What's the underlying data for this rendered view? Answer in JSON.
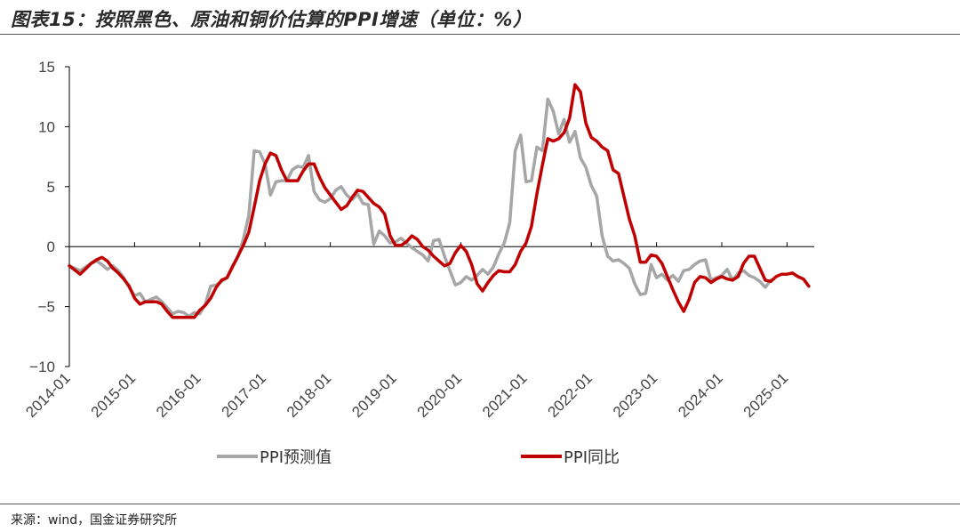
{
  "header": {
    "title": "图表15：按照黑色、原油和铜价估算的PPI增速（单位：%）"
  },
  "footer": {
    "source": "来源：wind，国金证券研究所"
  },
  "colors": {
    "forecast": "#A6A6A6",
    "actual": "#C00000",
    "axis": "#000000"
  },
  "chart_data": {
    "type": "line",
    "title": "",
    "xlabel": "",
    "ylabel": "",
    "ylim": [
      -10,
      15
    ],
    "yticks": [
      15,
      10,
      5,
      0,
      -5,
      -10
    ],
    "x_start": "2014-01",
    "x_end": "2025-06",
    "xticks": [
      "2014-01",
      "2015-01",
      "2016-01",
      "2017-01",
      "2018-01",
      "2019-01",
      "2020-01",
      "2021-01",
      "2022-01",
      "2023-01",
      "2024-01",
      "2025-01"
    ],
    "legend_position": "bottom",
    "series": [
      {
        "name": "PPI预测值",
        "points": [
          [
            "2014-01",
            -1.6
          ],
          [
            "2014-03",
            -2.0
          ],
          [
            "2014-05",
            -1.4
          ],
          [
            "2014-06",
            -1.2
          ],
          [
            "2014-07",
            -1.5
          ],
          [
            "2014-08",
            -1.9
          ],
          [
            "2014-09",
            -1.6
          ],
          [
            "2014-10",
            -2.0
          ],
          [
            "2014-11",
            -2.6
          ],
          [
            "2014-12",
            -3.4
          ],
          [
            "2015-01",
            -4.1
          ],
          [
            "2015-02",
            -3.9
          ],
          [
            "2015-03",
            -4.6
          ],
          [
            "2015-04",
            -4.4
          ],
          [
            "2015-05",
            -4.2
          ],
          [
            "2015-06",
            -4.6
          ],
          [
            "2015-07",
            -5.1
          ],
          [
            "2015-08",
            -5.6
          ],
          [
            "2015-09",
            -5.4
          ],
          [
            "2015-10",
            -5.5
          ],
          [
            "2015-11",
            -5.8
          ],
          [
            "2015-12",
            -5.5
          ],
          [
            "2016-01",
            -5.6
          ],
          [
            "2016-02",
            -4.8
          ],
          [
            "2016-03",
            -3.3
          ],
          [
            "2016-04",
            -3.2
          ],
          [
            "2016-05",
            -2.9
          ],
          [
            "2016-06",
            -2.6
          ],
          [
            "2016-07",
            -1.6
          ],
          [
            "2016-08",
            -0.9
          ],
          [
            "2016-09",
            0.6
          ],
          [
            "2016-10",
            2.6
          ],
          [
            "2016-11",
            8.0
          ],
          [
            "2016-12",
            7.9
          ],
          [
            "2017-01",
            6.9
          ],
          [
            "2017-02",
            4.3
          ],
          [
            "2017-03",
            5.4
          ],
          [
            "2017-04",
            5.5
          ],
          [
            "2017-05",
            5.5
          ],
          [
            "2017-06",
            6.4
          ],
          [
            "2017-07",
            6.7
          ],
          [
            "2017-08",
            6.6
          ],
          [
            "2017-09",
            7.6
          ],
          [
            "2017-10",
            4.6
          ],
          [
            "2017-11",
            3.9
          ],
          [
            "2017-12",
            3.7
          ],
          [
            "2018-01",
            4.0
          ],
          [
            "2018-02",
            4.7
          ],
          [
            "2018-03",
            5.0
          ],
          [
            "2018-04",
            4.3
          ],
          [
            "2018-05",
            3.9
          ],
          [
            "2018-06",
            4.4
          ],
          [
            "2018-07",
            3.6
          ],
          [
            "2018-08",
            3.5
          ],
          [
            "2018-09",
            0.2
          ],
          [
            "2018-10",
            1.3
          ],
          [
            "2018-11",
            0.9
          ],
          [
            "2018-12",
            0.3
          ],
          [
            "2019-01",
            0.4
          ],
          [
            "2019-02",
            0.7
          ],
          [
            "2019-03",
            0.3
          ],
          [
            "2019-04",
            -0.1
          ],
          [
            "2019-05",
            -0.4
          ],
          [
            "2019-06",
            -0.7
          ],
          [
            "2019-07",
            -1.2
          ],
          [
            "2019-08",
            0.5
          ],
          [
            "2019-09",
            0.6
          ],
          [
            "2019-10",
            -0.8
          ],
          [
            "2019-11",
            -2.0
          ],
          [
            "2019-12",
            -3.2
          ],
          [
            "2020-01",
            -3.0
          ],
          [
            "2020-02",
            -2.5
          ],
          [
            "2020-03",
            -2.8
          ],
          [
            "2020-04",
            -2.4
          ],
          [
            "2020-05",
            -1.9
          ],
          [
            "2020-06",
            -2.3
          ],
          [
            "2020-07",
            -1.7
          ],
          [
            "2020-08",
            -0.6
          ],
          [
            "2020-09",
            0.3
          ],
          [
            "2020-10",
            2.0
          ],
          [
            "2020-11",
            8.0
          ],
          [
            "2020-12",
            9.3
          ],
          [
            "2021-01",
            5.4
          ],
          [
            "2021-02",
            5.5
          ],
          [
            "2021-03",
            8.3
          ],
          [
            "2021-04",
            8.0
          ],
          [
            "2021-05",
            12.3
          ],
          [
            "2021-06",
            11.3
          ],
          [
            "2021-07",
            9.4
          ],
          [
            "2021-08",
            10.6
          ],
          [
            "2021-09",
            8.7
          ],
          [
            "2021-10",
            9.6
          ],
          [
            "2021-11",
            7.4
          ],
          [
            "2021-12",
            6.6
          ],
          [
            "2022-01",
            5.1
          ],
          [
            "2022-02",
            4.2
          ],
          [
            "2022-03",
            0.9
          ],
          [
            "2022-04",
            -0.8
          ],
          [
            "2022-05",
            -1.2
          ],
          [
            "2022-06",
            -1.1
          ],
          [
            "2022-07",
            -1.4
          ],
          [
            "2022-08",
            -1.8
          ],
          [
            "2022-09",
            -3.1
          ],
          [
            "2022-10",
            -4.0
          ],
          [
            "2022-11",
            -3.9
          ],
          [
            "2022-12",
            -1.5
          ],
          [
            "2023-01",
            -2.6
          ],
          [
            "2023-02",
            -2.3
          ],
          [
            "2023-03",
            -2.8
          ],
          [
            "2023-04",
            -2.4
          ],
          [
            "2023-05",
            -2.9
          ],
          [
            "2023-06",
            -2.0
          ],
          [
            "2023-07",
            -1.9
          ],
          [
            "2023-08",
            -1.5
          ],
          [
            "2023-09",
            -1.2
          ],
          [
            "2023-10",
            -1.1
          ],
          [
            "2023-11",
            -2.8
          ],
          [
            "2023-12",
            -2.6
          ],
          [
            "2024-01",
            -2.4
          ],
          [
            "2024-02",
            -1.9
          ],
          [
            "2024-03",
            -2.8
          ],
          [
            "2024-04",
            -2.2
          ],
          [
            "2024-05",
            -2.0
          ],
          [
            "2024-06",
            -2.4
          ],
          [
            "2024-07",
            -2.6
          ],
          [
            "2024-08",
            -2.9
          ],
          [
            "2024-09",
            -3.4
          ],
          [
            "2024-10",
            -2.8
          ]
        ]
      },
      {
        "name": "PPI同比",
        "points": [
          [
            "2014-01",
            -1.6
          ],
          [
            "2014-03",
            -2.3
          ],
          [
            "2014-05",
            -1.4
          ],
          [
            "2014-06",
            -1.1
          ],
          [
            "2014-07",
            -0.9
          ],
          [
            "2014-08",
            -1.2
          ],
          [
            "2014-09",
            -1.8
          ],
          [
            "2014-10",
            -2.2
          ],
          [
            "2014-11",
            -2.7
          ],
          [
            "2014-12",
            -3.3
          ],
          [
            "2015-01",
            -4.3
          ],
          [
            "2015-02",
            -4.8
          ],
          [
            "2015-03",
            -4.6
          ],
          [
            "2015-04",
            -4.6
          ],
          [
            "2015-05",
            -4.6
          ],
          [
            "2015-06",
            -4.8
          ],
          [
            "2015-07",
            -5.4
          ],
          [
            "2015-08",
            -5.9
          ],
          [
            "2015-09",
            -5.9
          ],
          [
            "2015-10",
            -5.9
          ],
          [
            "2015-11",
            -5.9
          ],
          [
            "2015-12",
            -5.9
          ],
          [
            "2016-01",
            -5.3
          ],
          [
            "2016-02",
            -4.9
          ],
          [
            "2016-03",
            -4.3
          ],
          [
            "2016-04",
            -3.4
          ],
          [
            "2016-05",
            -2.8
          ],
          [
            "2016-06",
            -2.6
          ],
          [
            "2016-07",
            -1.7
          ],
          [
            "2016-08",
            -0.8
          ],
          [
            "2016-09",
            0.1
          ],
          [
            "2016-10",
            1.2
          ],
          [
            "2016-11",
            3.3
          ],
          [
            "2016-12",
            5.5
          ],
          [
            "2017-01",
            6.9
          ],
          [
            "2017-02",
            7.8
          ],
          [
            "2017-03",
            7.6
          ],
          [
            "2017-04",
            6.4
          ],
          [
            "2017-05",
            5.5
          ],
          [
            "2017-06",
            5.5
          ],
          [
            "2017-07",
            5.5
          ],
          [
            "2017-08",
            6.3
          ],
          [
            "2017-09",
            6.9
          ],
          [
            "2017-10",
            6.9
          ],
          [
            "2017-11",
            5.8
          ],
          [
            "2017-12",
            4.9
          ],
          [
            "2018-01",
            4.3
          ],
          [
            "2018-02",
            3.7
          ],
          [
            "2018-03",
            3.1
          ],
          [
            "2018-04",
            3.4
          ],
          [
            "2018-05",
            4.1
          ],
          [
            "2018-06",
            4.7
          ],
          [
            "2018-07",
            4.6
          ],
          [
            "2018-08",
            4.1
          ],
          [
            "2018-09",
            3.6
          ],
          [
            "2018-10",
            3.3
          ],
          [
            "2018-11",
            2.7
          ],
          [
            "2018-12",
            0.9
          ],
          [
            "2019-01",
            0.1
          ],
          [
            "2019-02",
            0.1
          ],
          [
            "2019-03",
            0.4
          ],
          [
            "2019-04",
            0.9
          ],
          [
            "2019-05",
            0.6
          ],
          [
            "2019-06",
            0.0
          ],
          [
            "2019-07",
            -0.3
          ],
          [
            "2019-08",
            -0.8
          ],
          [
            "2019-09",
            -1.2
          ],
          [
            "2019-10",
            -1.6
          ],
          [
            "2019-11",
            -1.4
          ],
          [
            "2019-12",
            -0.5
          ],
          [
            "2020-01",
            0.1
          ],
          [
            "2020-02",
            -0.4
          ],
          [
            "2020-03",
            -1.5
          ],
          [
            "2020-04",
            -3.1
          ],
          [
            "2020-05",
            -3.7
          ],
          [
            "2020-06",
            -3.0
          ],
          [
            "2020-07",
            -2.4
          ],
          [
            "2020-08",
            -2.0
          ],
          [
            "2020-09",
            -2.1
          ],
          [
            "2020-10",
            -2.1
          ],
          [
            "2020-11",
            -1.5
          ],
          [
            "2020-12",
            -0.4
          ],
          [
            "2021-01",
            0.3
          ],
          [
            "2021-02",
            1.7
          ],
          [
            "2021-03",
            4.4
          ],
          [
            "2021-04",
            6.8
          ],
          [
            "2021-05",
            9.0
          ],
          [
            "2021-06",
            8.8
          ],
          [
            "2021-07",
            9.0
          ],
          [
            "2021-08",
            9.5
          ],
          [
            "2021-09",
            10.7
          ],
          [
            "2021-10",
            13.5
          ],
          [
            "2021-11",
            12.9
          ],
          [
            "2021-12",
            10.3
          ],
          [
            "2022-01",
            9.1
          ],
          [
            "2022-02",
            8.8
          ],
          [
            "2022-03",
            8.3
          ],
          [
            "2022-04",
            8.0
          ],
          [
            "2022-05",
            6.4
          ],
          [
            "2022-06",
            6.1
          ],
          [
            "2022-07",
            4.2
          ],
          [
            "2022-08",
            2.3
          ],
          [
            "2022-09",
            0.9
          ],
          [
            "2022-10",
            -1.3
          ],
          [
            "2022-11",
            -1.3
          ],
          [
            "2022-12",
            -0.7
          ],
          [
            "2023-01",
            -0.8
          ],
          [
            "2023-02",
            -1.4
          ],
          [
            "2023-03",
            -2.5
          ],
          [
            "2023-04",
            -3.6
          ],
          [
            "2023-05",
            -4.6
          ],
          [
            "2023-06",
            -5.4
          ],
          [
            "2023-07",
            -4.4
          ],
          [
            "2023-08",
            -3.0
          ],
          [
            "2023-09",
            -2.5
          ],
          [
            "2023-10",
            -2.6
          ],
          [
            "2023-11",
            -3.0
          ],
          [
            "2023-12",
            -2.7
          ],
          [
            "2024-01",
            -2.5
          ],
          [
            "2024-02",
            -2.7
          ],
          [
            "2024-03",
            -2.8
          ],
          [
            "2024-04",
            -2.5
          ],
          [
            "2024-05",
            -1.4
          ],
          [
            "2024-06",
            -0.8
          ],
          [
            "2024-07",
            -0.8
          ],
          [
            "2024-08",
            -1.8
          ],
          [
            "2024-09",
            -2.8
          ],
          [
            "2024-10",
            -2.9
          ],
          [
            "2024-11",
            -2.5
          ],
          [
            "2024-12",
            -2.3
          ],
          [
            "2025-01",
            -2.3
          ],
          [
            "2025-02",
            -2.2
          ],
          [
            "2025-03",
            -2.5
          ],
          [
            "2025-04",
            -2.7
          ],
          [
            "2025-05",
            -3.3
          ]
        ]
      }
    ]
  }
}
